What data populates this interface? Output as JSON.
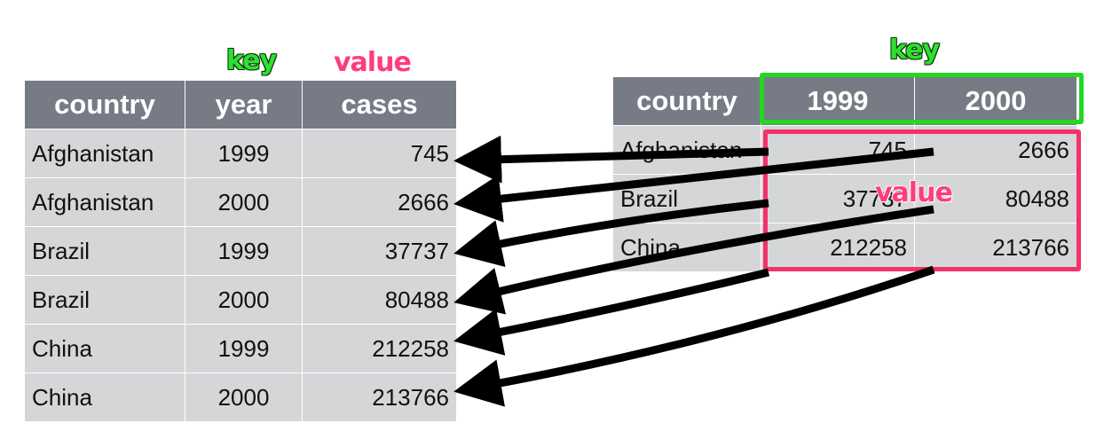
{
  "labels": {
    "left_key": "key",
    "left_value": "value",
    "right_key": "key",
    "right_value": "value"
  },
  "long_table": {
    "headers": [
      "country",
      "year",
      "cases"
    ],
    "rows": [
      [
        "Afghanistan",
        "1999",
        "745"
      ],
      [
        "Afghanistan",
        "2000",
        "2666"
      ],
      [
        "Brazil",
        "1999",
        "37737"
      ],
      [
        "Brazil",
        "2000",
        "80488"
      ],
      [
        "China",
        "1999",
        "212258"
      ],
      [
        "China",
        "2000",
        "213766"
      ]
    ]
  },
  "wide_table": {
    "headers": [
      "country",
      "1999",
      "2000"
    ],
    "rows": [
      [
        "Afghanistan",
        "745",
        "2666"
      ],
      [
        "Brazil",
        "37737",
        "80488"
      ],
      [
        "China",
        "212258",
        "213766"
      ]
    ]
  },
  "colors": {
    "key_green": "#22d822",
    "value_pink": "#f2336a",
    "header_gray": "#777b85",
    "cell_gray": "#d5d6d8"
  }
}
